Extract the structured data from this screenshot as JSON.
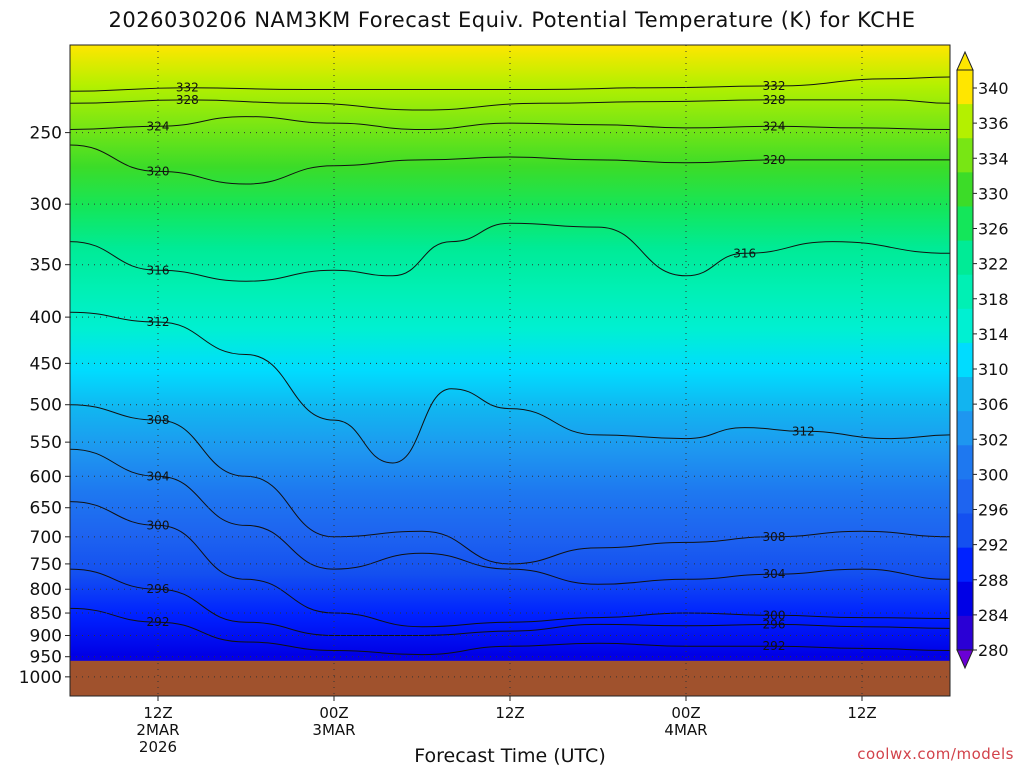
{
  "title": "2026030206 NAM3KM Forecast Equiv. Potential Temperature (K) for KCHE",
  "footer": {
    "credit": "coolwx.com/models"
  },
  "chart_data": {
    "type": "heatmap",
    "title": "2026030206 NAM3KM Forecast Equiv. Potential Temperature (K) for KCHE",
    "xlabel": "Forecast Time (UTC)",
    "ylabel": "",
    "y_scale": "log",
    "y_reversed": true,
    "ylim": [
      1050,
      200
    ],
    "y_ticks": [
      250,
      300,
      350,
      400,
      450,
      500,
      550,
      600,
      650,
      700,
      750,
      800,
      850,
      900,
      950,
      1000
    ],
    "xlim_hours": [
      6,
      66
    ],
    "x_ticks": [
      {
        "hour": 12,
        "lines": [
          "12Z",
          "2MAR",
          "2026"
        ]
      },
      {
        "hour": 24,
        "lines": [
          "00Z",
          "3MAR"
        ]
      },
      {
        "hour": 36,
        "lines": [
          "12Z"
        ]
      },
      {
        "hour": 48,
        "lines": [
          "00Z",
          "4MAR"
        ]
      },
      {
        "hour": 60,
        "lines": [
          "12Z"
        ]
      }
    ],
    "surface_pressure": 960,
    "grid": true,
    "contour_interval": 4,
    "colorbar": {
      "levels": [
        280,
        284,
        288,
        292,
        296,
        300,
        302,
        306,
        310,
        314,
        318,
        322,
        326,
        330,
        334,
        336,
        340
      ],
      "labels": [
        "340",
        "336",
        "334",
        "330",
        "326",
        "322",
        "318",
        "314",
        "310",
        "306",
        "302",
        "300",
        "296",
        "292",
        "288",
        "284",
        "280"
      ],
      "colors": [
        "#2a00d5",
        "#0000e6",
        "#0022ff",
        "#1450f0",
        "#1e64f0",
        "#1e78f0",
        "#1e96f0",
        "#12b4f0",
        "#00dcff",
        "#00f0d2",
        "#00f0b4",
        "#00eb96",
        "#14e65a",
        "#3cdc28",
        "#78e614",
        "#b4f000",
        "#ffe600"
      ]
    },
    "contour_lines": [
      {
        "label": "332",
        "points": [
          [
            6,
            225
          ],
          [
            14,
            223
          ],
          [
            22,
            224
          ],
          [
            30,
            224
          ],
          [
            38,
            224
          ],
          [
            46,
            223
          ],
          [
            54,
            222
          ],
          [
            62,
            218
          ],
          [
            66,
            217
          ]
        ]
      },
      {
        "label": "328",
        "points": [
          [
            6,
            232
          ],
          [
            14,
            230
          ],
          [
            22,
            232
          ],
          [
            30,
            236
          ],
          [
            38,
            232
          ],
          [
            46,
            231
          ],
          [
            54,
            230
          ],
          [
            62,
            230
          ],
          [
            66,
            232
          ]
        ]
      },
      {
        "label": "324",
        "points": [
          [
            6,
            248
          ],
          [
            12,
            246
          ],
          [
            18,
            240
          ],
          [
            24,
            244
          ],
          [
            30,
            248
          ],
          [
            36,
            244
          ],
          [
            42,
            245
          ],
          [
            48,
            247
          ],
          [
            54,
            246
          ],
          [
            60,
            247
          ],
          [
            66,
            248
          ]
        ]
      },
      {
        "label": "320",
        "points": [
          [
            6,
            258
          ],
          [
            12,
            276
          ],
          [
            18,
            285
          ],
          [
            24,
            272
          ],
          [
            30,
            268
          ],
          [
            36,
            266
          ],
          [
            42,
            268
          ],
          [
            48,
            270
          ],
          [
            54,
            268
          ],
          [
            60,
            268
          ],
          [
            66,
            268
          ]
        ]
      },
      {
        "label": "316",
        "points": [
          [
            6,
            330
          ],
          [
            12,
            355
          ],
          [
            18,
            365
          ],
          [
            24,
            355
          ],
          [
            28,
            360
          ],
          [
            32,
            330
          ],
          [
            36,
            315
          ],
          [
            42,
            318
          ],
          [
            48,
            360
          ],
          [
            52,
            340
          ],
          [
            58,
            330
          ],
          [
            66,
            340
          ]
        ]
      },
      {
        "label": "312",
        "points": [
          [
            6,
            395
          ],
          [
            12,
            405
          ],
          [
            18,
            440
          ],
          [
            24,
            520
          ],
          [
            28,
            580
          ],
          [
            32,
            480
          ],
          [
            36,
            505
          ],
          [
            42,
            540
          ],
          [
            48,
            545
          ],
          [
            52,
            530
          ],
          [
            56,
            535
          ],
          [
            62,
            545
          ],
          [
            66,
            540
          ]
        ]
      },
      {
        "label": "308",
        "points": [
          [
            6,
            500
          ],
          [
            12,
            520
          ],
          [
            18,
            600
          ],
          [
            24,
            700
          ],
          [
            30,
            690
          ],
          [
            36,
            750
          ],
          [
            42,
            720
          ],
          [
            48,
            710
          ],
          [
            54,
            700
          ],
          [
            60,
            690
          ],
          [
            66,
            700
          ]
        ]
      },
      {
        "label": "304",
        "points": [
          [
            6,
            560
          ],
          [
            12,
            600
          ],
          [
            18,
            680
          ],
          [
            24,
            760
          ],
          [
            30,
            730
          ],
          [
            36,
            760
          ],
          [
            42,
            790
          ],
          [
            48,
            780
          ],
          [
            54,
            770
          ],
          [
            60,
            760
          ],
          [
            66,
            780
          ]
        ]
      },
      {
        "label": "300",
        "points": [
          [
            6,
            640
          ],
          [
            12,
            680
          ],
          [
            18,
            780
          ],
          [
            24,
            850
          ],
          [
            30,
            880
          ],
          [
            36,
            870
          ],
          [
            42,
            860
          ],
          [
            48,
            850
          ],
          [
            54,
            855
          ],
          [
            60,
            860
          ],
          [
            66,
            862
          ]
        ]
      },
      {
        "label": "296",
        "points": [
          [
            6,
            760
          ],
          [
            12,
            800
          ],
          [
            18,
            870
          ],
          [
            24,
            900
          ],
          [
            30,
            900
          ],
          [
            36,
            890
          ],
          [
            42,
            875
          ],
          [
            48,
            878
          ],
          [
            54,
            875
          ],
          [
            60,
            880
          ],
          [
            66,
            884
          ]
        ]
      },
      {
        "label": "292",
        "points": [
          [
            6,
            840
          ],
          [
            12,
            870
          ],
          [
            18,
            915
          ],
          [
            24,
            935
          ],
          [
            30,
            945
          ],
          [
            36,
            925
          ],
          [
            42,
            918
          ],
          [
            48,
            925
          ],
          [
            54,
            925
          ],
          [
            60,
            930
          ],
          [
            66,
            935
          ]
        ]
      }
    ],
    "annotations": [
      "332",
      "328",
      "324",
      "320",
      "316",
      "312",
      "308",
      "304",
      "300",
      "296",
      "292"
    ]
  }
}
